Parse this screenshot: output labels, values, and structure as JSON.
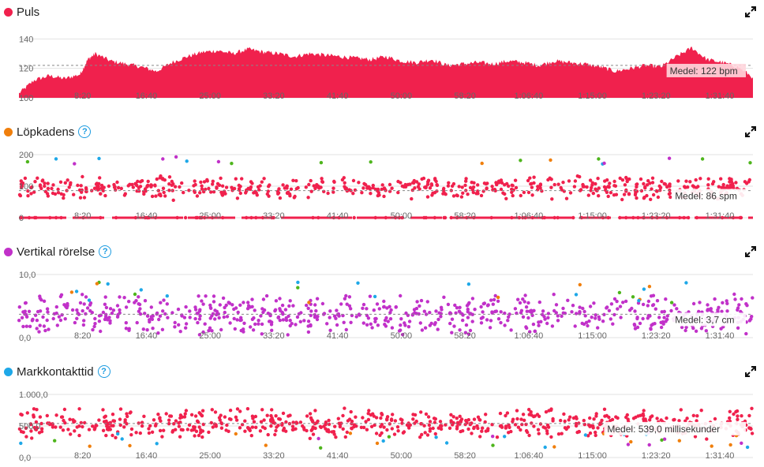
{
  "colors": {
    "red": "#f0214d",
    "orange": "#f07f0c",
    "purple": "#c131c9",
    "blue": "#1ea8e8",
    "green": "#4eb51c"
  },
  "x_ticks": [
    "8:20",
    "16:40",
    "25:00",
    "33:20",
    "41:40",
    "50:00",
    "58:20",
    "1:06:40",
    "1:15:00",
    "1:23:20",
    "1:31:40"
  ],
  "chart_data": [
    {
      "type": "area",
      "title": "Puls",
      "legend_color": "#f0214d",
      "y_ticks": [
        "140",
        "120",
        "100"
      ],
      "ylim": [
        100,
        145
      ],
      "avg_label": "Medel: 122 bpm",
      "avg": 122,
      "x_minutes": [
        0,
        2,
        4,
        6,
        8,
        9,
        10,
        12,
        14,
        16,
        18,
        20,
        22,
        24,
        26,
        28,
        30,
        32,
        34,
        36,
        38,
        40,
        42,
        44,
        46,
        48,
        50,
        52,
        54,
        56,
        58,
        60,
        62,
        64,
        66,
        68,
        70,
        72,
        74,
        76,
        78,
        80,
        82,
        84,
        86,
        88,
        90,
        92,
        94,
        96
      ],
      "values": [
        103,
        112,
        115,
        113,
        116,
        126,
        130,
        125,
        123,
        121,
        118,
        124,
        128,
        131,
        132,
        130,
        133,
        131,
        130,
        128,
        130,
        129,
        128,
        127,
        126,
        128,
        125,
        124,
        126,
        122,
        123,
        124,
        123,
        125,
        124,
        122,
        125,
        124,
        123,
        121,
        118,
        120,
        122,
        121,
        128,
        134,
        126,
        124,
        121,
        114
      ]
    },
    {
      "type": "scatter",
      "title": "Löpkadens",
      "legend_color": "#f07f0c",
      "y_ticks": [
        "200",
        "100",
        "0"
      ],
      "ylim": [
        0,
        210
      ],
      "avg_label": "Medel: 86 spm",
      "avg": 86
    },
    {
      "type": "scatter",
      "title": "Vertikal rörelse",
      "legend_color": "#c131c9",
      "y_ticks": [
        "10,0",
        "0,0"
      ],
      "ylim": [
        0,
        10.5
      ],
      "avg_label": "Medel: 3,7 cm",
      "avg": 3.7
    },
    {
      "type": "scatter",
      "title": "Markkontakttid",
      "legend_color": "#1ea8e8",
      "y_ticks": [
        "1.000,0",
        "500,0",
        "0,0"
      ],
      "ylim": [
        0,
        1050
      ],
      "avg_label": "Medel: 539,0 millisekunder",
      "avg": 539
    }
  ]
}
